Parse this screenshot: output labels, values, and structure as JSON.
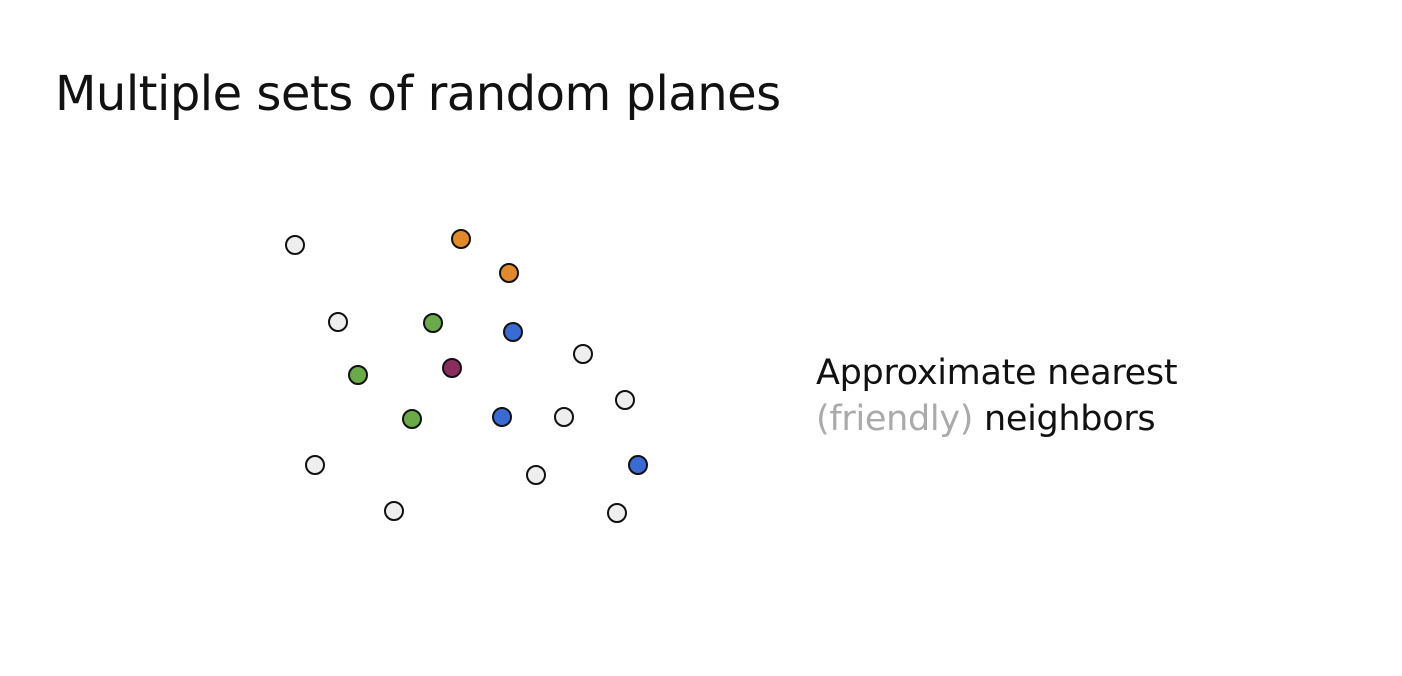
{
  "slide": {
    "title": "Multiple sets of random planes"
  },
  "caption": {
    "line1": "Approximate nearest",
    "line2_muted": "(friendly)",
    "line2_rest": "neighbors"
  },
  "colors": {
    "neutral": "#eeeeee",
    "orange": "#e08a2c",
    "green": "#6aaa48",
    "blue": "#3a6ad4",
    "query": "#8b2d5c",
    "outline": "#111111"
  },
  "points": [
    {
      "group": "neutral"
    },
    {
      "group": "orange"
    },
    {
      "group": "orange"
    },
    {
      "group": "neutral"
    },
    {
      "group": "green"
    },
    {
      "group": "blue"
    },
    {
      "group": "neutral"
    },
    {
      "group": "green"
    },
    {
      "group": "query"
    },
    {
      "group": "neutral"
    },
    {
      "group": "green"
    },
    {
      "group": "blue"
    },
    {
      "group": "neutral"
    },
    {
      "group": "neutral"
    },
    {
      "group": "blue"
    },
    {
      "group": "neutral"
    },
    {
      "group": "neutral"
    },
    {
      "group": "neutral"
    }
  ]
}
